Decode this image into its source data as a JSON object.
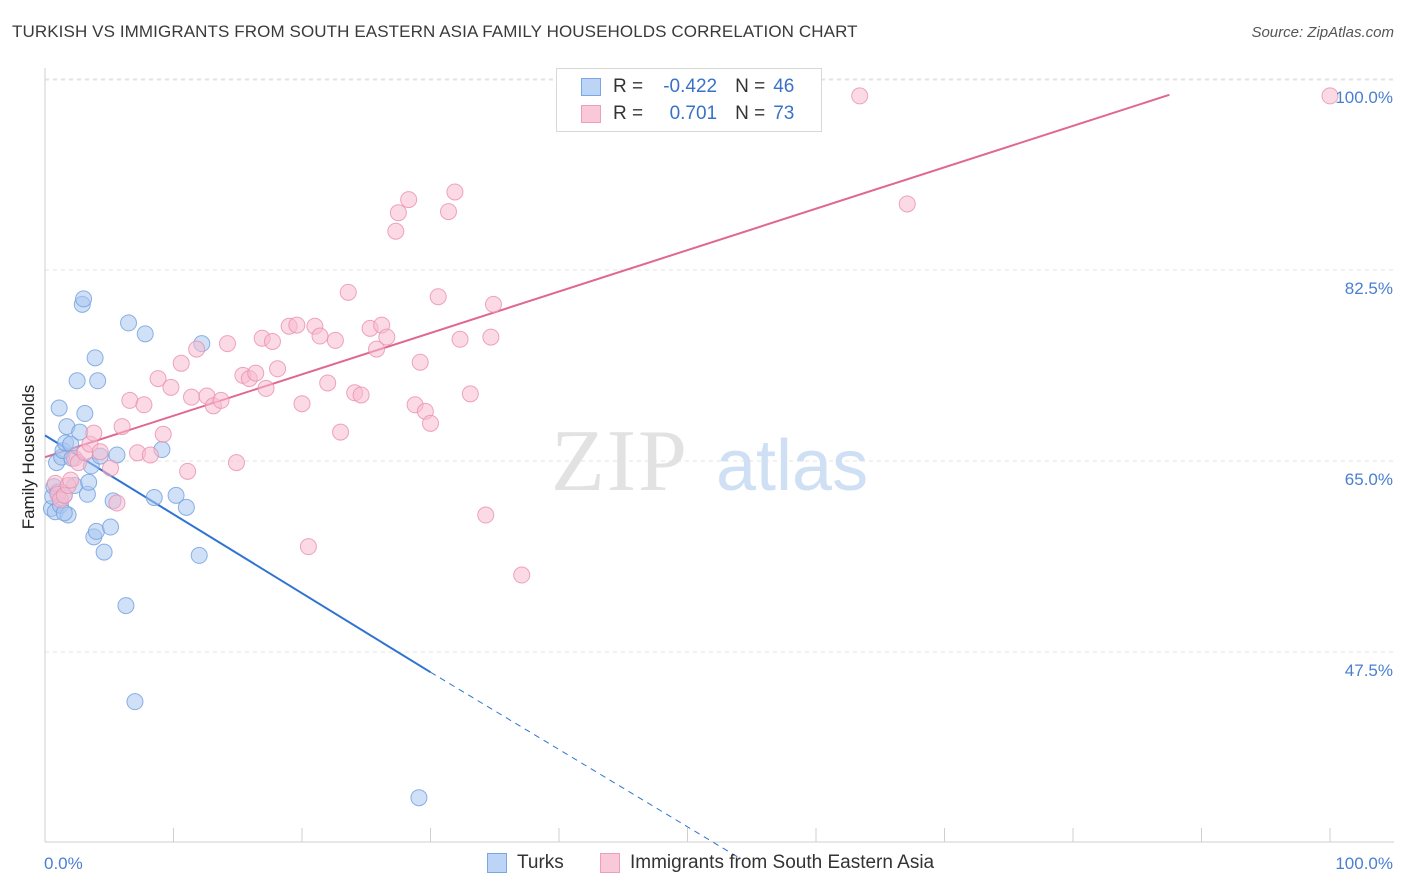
{
  "header": {
    "title": "TURKISH VS IMMIGRANTS FROM SOUTH EASTERN ASIA FAMILY HOUSEHOLDS CORRELATION CHART",
    "source": "Source: ZipAtlas.com"
  },
  "watermark": {
    "zip": "ZIP",
    "atlas": "atlas"
  },
  "legend": {
    "rows": [
      {
        "r_label": "R =",
        "r_value": "-0.422",
        "n_label": "N =",
        "n_value": "46"
      },
      {
        "r_label": "R =",
        "r_value": "0.701",
        "n_label": "N =",
        "n_value": "73"
      }
    ]
  },
  "bottom_legend": [
    {
      "label": "Turks"
    },
    {
      "label": "Immigrants from South Eastern Asia"
    }
  ],
  "colors": {
    "turks_fill": "#a9c6f0",
    "turks_stroke": "#6f9fde",
    "turks_line": "#2f74d0",
    "sea_fill": "#f7bcd0",
    "sea_stroke": "#ea8fae",
    "sea_line": "#e06890",
    "tick_label": "#4a7fd0",
    "grid": "#e3e3e3"
  },
  "chart_data": {
    "type": "scatter",
    "title": "TURKISH VS IMMIGRANTS FROM SOUTH EASTERN ASIA FAMILY HOUSEHOLDS CORRELATION CHART",
    "xlabel": "",
    "ylabel": "Family Households",
    "xlim": [
      0,
      100
    ],
    "ylim": [
      30.5,
      101.5
    ],
    "x_tick_labels": [
      "0.0%",
      "100.0%"
    ],
    "y_ticks": [
      47.5,
      65.0,
      82.5,
      100.0
    ],
    "y_tick_labels": [
      "47.5%",
      "65.0%",
      "82.5%",
      "100.0%"
    ],
    "grid": true,
    "legend_placement": "top-center",
    "series": [
      {
        "name": "Turks",
        "points": [
          [
            0.5,
            62.3
          ],
          [
            0.6,
            63.4
          ],
          [
            0.7,
            64.3
          ],
          [
            0.8,
            62.0
          ],
          [
            0.9,
            66.5
          ],
          [
            1.0,
            63.8
          ],
          [
            1.1,
            71.5
          ],
          [
            1.2,
            62.6
          ],
          [
            1.3,
            67.0
          ],
          [
            1.4,
            67.6
          ],
          [
            1.5,
            63.5
          ],
          [
            1.6,
            68.3
          ],
          [
            1.7,
            69.8
          ],
          [
            1.8,
            61.7
          ],
          [
            2.0,
            68.2
          ],
          [
            2.1,
            66.9
          ],
          [
            2.3,
            64.4
          ],
          [
            2.5,
            74.0
          ],
          [
            2.7,
            69.3
          ],
          [
            2.9,
            81.0
          ],
          [
            3.0,
            81.5
          ],
          [
            3.1,
            71.0
          ],
          [
            3.3,
            63.6
          ],
          [
            3.4,
            64.7
          ],
          [
            3.6,
            66.2
          ],
          [
            3.8,
            59.7
          ],
          [
            4.0,
            60.2
          ],
          [
            4.1,
            74.0
          ],
          [
            4.3,
            67.1
          ],
          [
            4.6,
            58.3
          ],
          [
            5.1,
            60.6
          ],
          [
            5.3,
            63.0
          ],
          [
            5.6,
            67.2
          ],
          [
            6.3,
            53.4
          ],
          [
            6.5,
            79.3
          ],
          [
            7.0,
            44.6
          ],
          [
            7.8,
            78.3
          ],
          [
            8.5,
            63.3
          ],
          [
            9.1,
            67.7
          ],
          [
            10.2,
            63.5
          ],
          [
            11.0,
            62.4
          ],
          [
            12.0,
            58.0
          ],
          [
            12.2,
            77.4
          ],
          [
            29.1,
            35.8
          ],
          [
            1.5,
            61.9
          ],
          [
            3.9,
            76.1
          ]
        ]
      },
      {
        "name": "Immigrants from South Eastern Asia",
        "points": [
          [
            0.8,
            64.6
          ],
          [
            1.0,
            63.6
          ],
          [
            1.2,
            63.1
          ],
          [
            1.5,
            63.5
          ],
          [
            1.8,
            64.4
          ],
          [
            2.0,
            64.9
          ],
          [
            2.3,
            66.9
          ],
          [
            2.6,
            66.5
          ],
          [
            3.1,
            67.4
          ],
          [
            3.5,
            68.2
          ],
          [
            3.8,
            69.2
          ],
          [
            4.3,
            67.5
          ],
          [
            5.1,
            66.0
          ],
          [
            5.6,
            62.8
          ],
          [
            6.0,
            69.8
          ],
          [
            6.6,
            72.2
          ],
          [
            7.2,
            67.4
          ],
          [
            7.7,
            71.8
          ],
          [
            8.2,
            67.2
          ],
          [
            8.8,
            74.2
          ],
          [
            9.2,
            69.1
          ],
          [
            9.8,
            73.4
          ],
          [
            10.6,
            75.6
          ],
          [
            11.1,
            65.7
          ],
          [
            11.4,
            72.5
          ],
          [
            11.8,
            76.9
          ],
          [
            12.6,
            72.6
          ],
          [
            13.1,
            71.7
          ],
          [
            13.7,
            72.2
          ],
          [
            14.2,
            77.4
          ],
          [
            14.9,
            66.5
          ],
          [
            15.4,
            74.5
          ],
          [
            15.9,
            74.2
          ],
          [
            16.4,
            74.7
          ],
          [
            16.9,
            77.9
          ],
          [
            17.2,
            73.3
          ],
          [
            17.7,
            77.6
          ],
          [
            18.1,
            75.1
          ],
          [
            19.0,
            79.0
          ],
          [
            19.6,
            79.1
          ],
          [
            20.0,
            71.9
          ],
          [
            20.5,
            58.8
          ],
          [
            21.0,
            79.0
          ],
          [
            21.4,
            78.1
          ],
          [
            22.0,
            73.8
          ],
          [
            22.6,
            77.7
          ],
          [
            23.0,
            69.3
          ],
          [
            23.6,
            82.1
          ],
          [
            24.1,
            72.9
          ],
          [
            24.6,
            72.7
          ],
          [
            25.3,
            78.8
          ],
          [
            25.8,
            76.9
          ],
          [
            26.2,
            79.1
          ],
          [
            26.6,
            78.0
          ],
          [
            27.3,
            87.7
          ],
          [
            27.5,
            89.4
          ],
          [
            28.3,
            90.6
          ],
          [
            28.8,
            71.8
          ],
          [
            29.2,
            75.7
          ],
          [
            29.6,
            71.2
          ],
          [
            30.0,
            70.1
          ],
          [
            30.6,
            81.7
          ],
          [
            31.4,
            89.5
          ],
          [
            31.9,
            91.3
          ],
          [
            32.3,
            77.8
          ],
          [
            33.1,
            72.8
          ],
          [
            34.3,
            61.7
          ],
          [
            34.7,
            78.0
          ],
          [
            34.9,
            81.0
          ],
          [
            37.1,
            56.2
          ],
          [
            63.4,
            100.1
          ],
          [
            67.1,
            90.2
          ],
          [
            100.0,
            100.1
          ]
        ]
      }
    ],
    "trend_lines": [
      {
        "series": "Turks",
        "x": [
          0.0,
          30.0
        ],
        "y": [
          69.0,
          47.3
        ],
        "dashed_extension": {
          "x": [
            30.0,
            54.0
          ],
          "y": [
            47.3,
            30.3
          ]
        }
      },
      {
        "series": "Immigrants from South Eastern Asia",
        "x": [
          0.0,
          87.5
        ],
        "y": [
          67.0,
          100.2
        ]
      }
    ]
  }
}
